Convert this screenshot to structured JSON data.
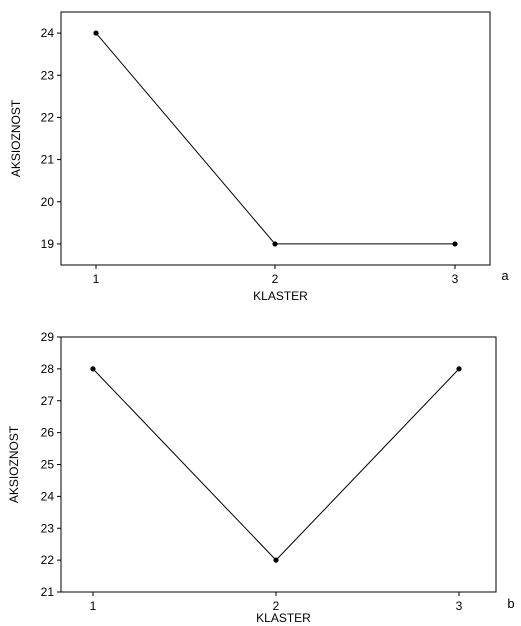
{
  "chart_data": [
    {
      "type": "line",
      "panel_label": "a",
      "x": [
        1,
        2,
        3
      ],
      "x_tick_labels": [
        "1",
        "2",
        "3"
      ],
      "xlabel": "KLASTER",
      "ylabel": "AKSIOZNOST",
      "ylim": [
        18.5,
        24.5
      ],
      "y_ticks": [
        19,
        20,
        21,
        22,
        23,
        24
      ],
      "series": [
        {
          "values": [
            24,
            19,
            19
          ]
        }
      ],
      "grid": false
    },
    {
      "type": "line",
      "panel_label": "b",
      "x": [
        1,
        2,
        3
      ],
      "x_tick_labels": [
        "1",
        "2",
        "3"
      ],
      "xlabel": "KLASTER",
      "ylabel": "AKSIOZNOST",
      "ylim": [
        21,
        29
      ],
      "y_ticks": [
        21,
        22,
        23,
        24,
        25,
        26,
        27,
        28,
        29
      ],
      "series": [
        {
          "values": [
            28,
            22,
            28
          ]
        }
      ],
      "grid": false
    }
  ]
}
